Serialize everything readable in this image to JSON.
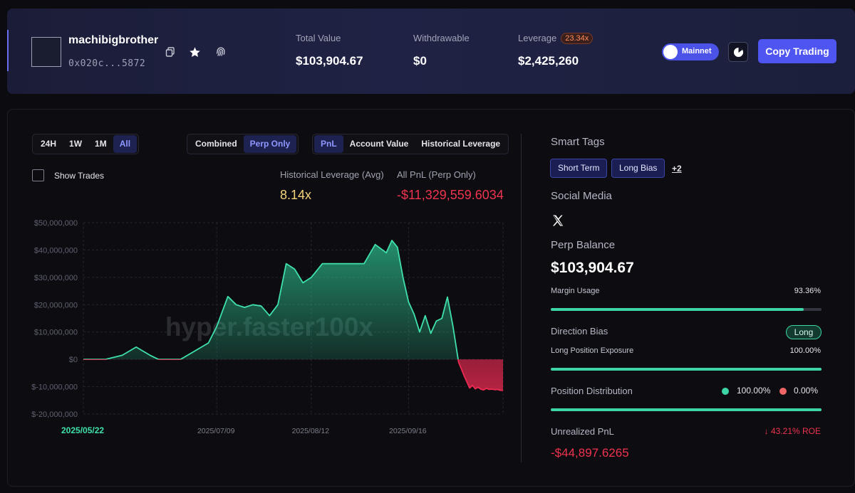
{
  "header": {
    "username": "machibigbrother",
    "address": "0x020c...5872",
    "stats": {
      "total_value_label": "Total Value",
      "total_value": "$103,904.67",
      "withdrawable_label": "Withdrawable",
      "withdrawable": "$0",
      "leverage_label": "Leverage",
      "leverage_badge": "23.34x",
      "leverage_value": "$2,425,260"
    },
    "network_label": "Mainnet",
    "copy_trading_label": "Copy Trading"
  },
  "controls": {
    "timeframes": [
      "24H",
      "1W",
      "1M",
      "All"
    ],
    "timeframe_selected": "All",
    "modes": [
      "Combined",
      "Perp Only"
    ],
    "mode_selected": "Perp Only",
    "views": [
      "PnL",
      "Account Value",
      "Historical Leverage"
    ],
    "view_selected": "PnL",
    "show_trades_label": "Show Trades"
  },
  "metrics": {
    "hist_leverage_label": "Historical Leverage (Avg)",
    "hist_leverage_value": "8.14x",
    "all_pnl_label": "All PnL (Perp Only)",
    "all_pnl_value": "-$11,329,559.6034"
  },
  "chart_data": {
    "type": "area",
    "title": "",
    "xlabel": "",
    "ylabel": "",
    "watermark": "hyper.faster100x",
    "ylim": [
      -20000000,
      50000000
    ],
    "y_ticks": [
      "$50,000,000",
      "$40,000,000",
      "$30,000,000",
      "$20,000,000",
      "$10,000,000",
      "$0",
      "$-10,000,000",
      "$-20,000,000"
    ],
    "x_ticks": [
      "2025/05/22",
      "2025/07/09",
      "2025/08/12",
      "2025/09/16"
    ],
    "x_range": [
      "2025/05/22",
      "2025/10/20"
    ],
    "positive_color": "#3fe0ac",
    "negative_color": "#ec2a52",
    "grid": true,
    "series": [
      {
        "x": [
          "2025/05/22",
          "2025/05/30",
          "2025/06/05",
          "2025/06/10",
          "2025/06/15",
          "2025/06/18",
          "2025/06/21",
          "2025/06/26",
          "2025/07/01",
          "2025/07/06",
          "2025/07/09",
          "2025/07/13",
          "2025/07/16",
          "2025/07/19",
          "2025/07/22",
          "2025/07/25",
          "2025/07/28",
          "2025/07/31",
          "2025/08/03",
          "2025/08/06",
          "2025/08/09",
          "2025/08/12",
          "2025/08/16",
          "2025/08/20",
          "2025/08/23",
          "2025/08/27",
          "2025/08/31",
          "2025/09/04",
          "2025/09/08",
          "2025/09/10",
          "2025/09/12",
          "2025/09/14",
          "2025/09/16",
          "2025/09/18",
          "2025/09/20",
          "2025/09/22",
          "2025/09/24",
          "2025/09/26",
          "2025/09/28",
          "2025/09/30",
          "2025/10/02",
          "2025/10/04",
          "2025/10/06",
          "2025/10/08",
          "2025/10/09",
          "2025/10/10",
          "2025/10/11",
          "2025/10/12",
          "2025/10/13",
          "2025/10/14",
          "2025/10/15",
          "2025/10/16",
          "2025/10/17",
          "2025/10/18",
          "2025/10/19",
          "2025/10/20"
        ],
        "values": [
          0,
          0,
          1500000,
          4500000,
          1500000,
          0,
          0,
          0,
          3000000,
          6000000,
          12000000,
          23000000,
          20000000,
          19000000,
          20000000,
          19500000,
          16000000,
          20000000,
          35000000,
          33000000,
          28000000,
          30000000,
          35000000,
          35000000,
          35000000,
          35000000,
          35000000,
          42000000,
          39000000,
          43500000,
          41000000,
          30000000,
          21000000,
          16500000,
          10000000,
          16000000,
          9500000,
          14000000,
          15000000,
          22800000,
          12000000,
          -1000000,
          -6000000,
          -10500000,
          -9500000,
          -10800000,
          -10200000,
          -10900000,
          -11200000,
          -10600000,
          -11000000,
          -10900000,
          -11100000,
          -11000000,
          -11300000,
          -11330000
        ]
      }
    ]
  },
  "right": {
    "smart_tags_label": "Smart Tags",
    "tags": [
      "Short Term",
      "Long Bias"
    ],
    "more_tags": "+2",
    "social_media_label": "Social Media",
    "perp_balance_label": "Perp Balance",
    "perp_balance": "$103,904.67",
    "margin_usage_label": "Margin Usage",
    "margin_usage_value": "93.36%",
    "margin_usage": 0.9336,
    "direction_bias_label": "Direction Bias",
    "direction_bias_value": "Long",
    "long_exposure_label": "Long Position Exposure",
    "long_exposure_value": "100.00%",
    "long_exposure": 1.0,
    "position_distribution_label": "Position Distribution",
    "long_pct": "100.00%",
    "short_pct": "0.00%",
    "distribution": 1.0,
    "long_color": "#3dd4a6",
    "short_color": "#f06565",
    "unrealized_pnl_label": "Unrealized PnL",
    "roe": "↓ 43.21% ROE",
    "unrealized_pnl": "-$44,897.6265"
  }
}
